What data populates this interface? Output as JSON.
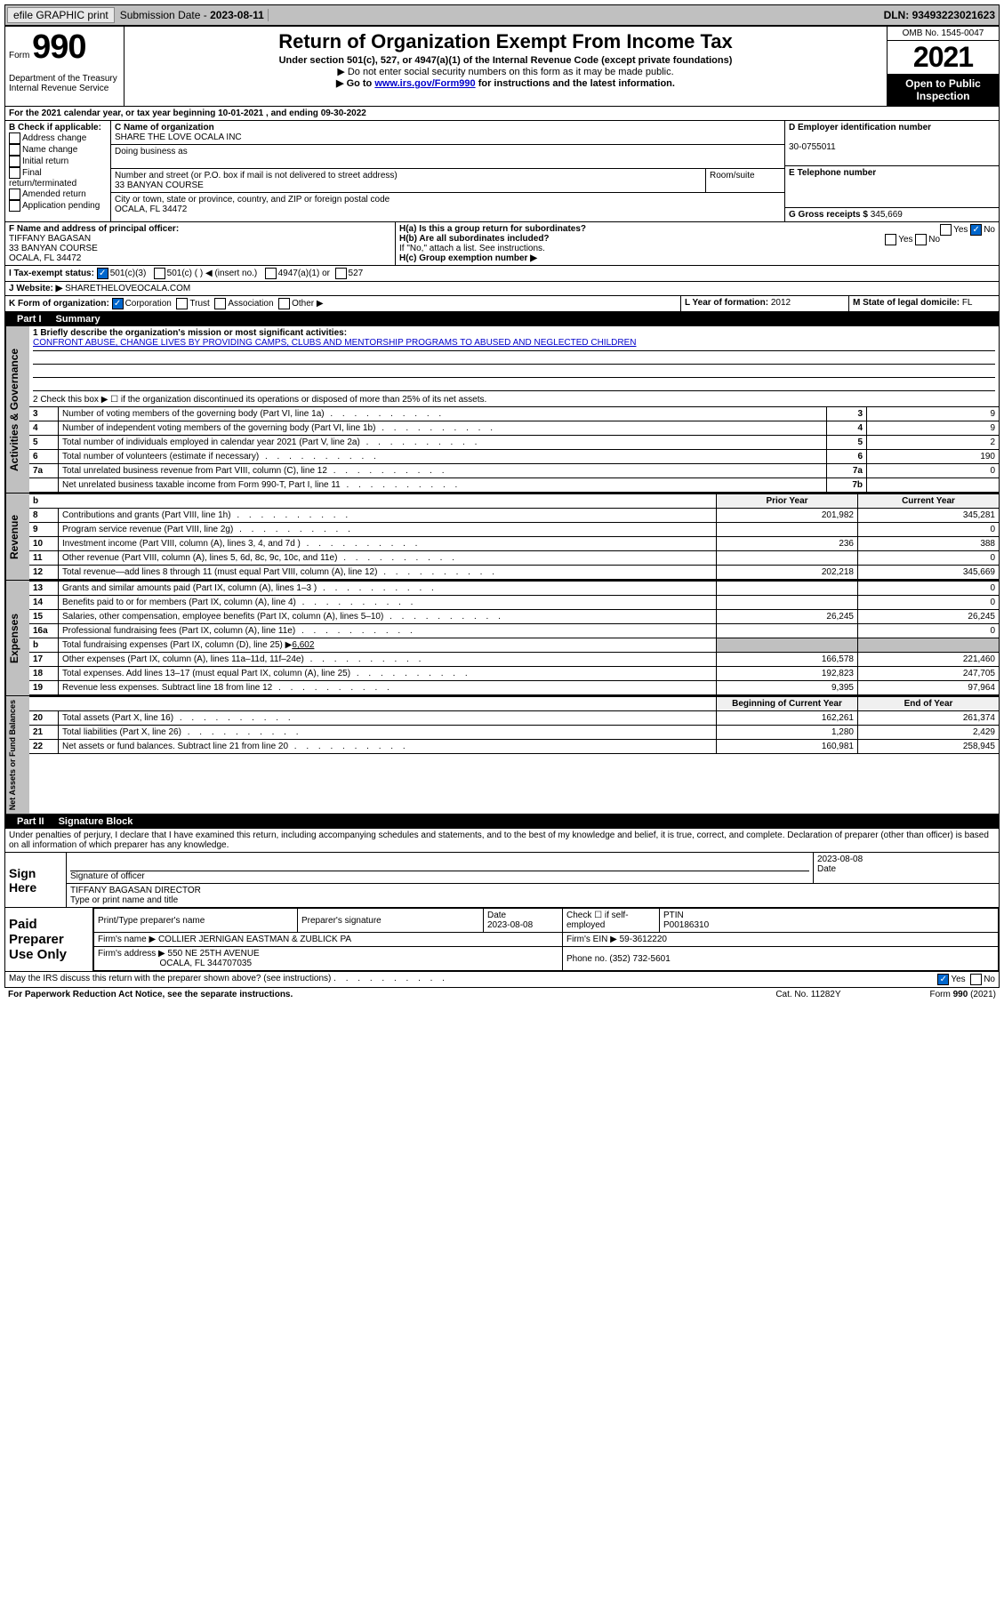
{
  "topbar": {
    "efile": "efile GRAPHIC print",
    "submission_label": "Submission Date - ",
    "submission_date": "2023-08-11",
    "dln_label": "DLN: ",
    "dln": "93493223021623"
  },
  "header": {
    "form_label": "Form",
    "form_number": "990",
    "title": "Return of Organization Exempt From Income Tax",
    "subtitle": "Under section 501(c), 527, or 4947(a)(1) of the Internal Revenue Code (except private foundations)",
    "instr1": "▶ Do not enter social security numbers on this form as it may be made public.",
    "instr2_prefix": "▶ Go to ",
    "instr2_link": "www.irs.gov/Form990",
    "instr2_suffix": " for instructions and the latest information.",
    "dept": "Department of the Treasury",
    "irs": "Internal Revenue Service",
    "omb": "OMB No. 1545-0047",
    "year": "2021",
    "public1": "Open to Public",
    "public2": "Inspection"
  },
  "line_a": "For the 2021 calendar year, or tax year beginning 10-01-2021   , and ending 09-30-2022",
  "section_b": {
    "label": "B Check if applicable:",
    "opts": [
      "Address change",
      "Name change",
      "Initial return",
      "Final return/terminated",
      "Amended return",
      "Application pending"
    ]
  },
  "section_c": {
    "name_label": "C Name of organization",
    "name": "SHARE THE LOVE OCALA INC",
    "dba_label": "Doing business as",
    "dba": "",
    "street_label": "Number and street (or P.O. box if mail is not delivered to street address)",
    "room_label": "Room/suite",
    "street": "33 BANYAN COURSE",
    "city_label": "City or town, state or province, country, and ZIP or foreign postal code",
    "city": "OCALA, FL  34472"
  },
  "section_d": {
    "label": "D Employer identification number",
    "value": "30-0755011"
  },
  "section_e": {
    "label": "E Telephone number",
    "value": ""
  },
  "section_f": {
    "label": "F Name and address of principal officer:",
    "name": "TIFFANY BAGASAN",
    "addr1": "33 BANYAN COURSE",
    "addr2": "OCALA, FL  34472"
  },
  "section_g": {
    "label": "G Gross receipts $",
    "value": "345,669"
  },
  "section_h": {
    "a_label": "H(a)  Is this a group return for subordinates?",
    "b_label": "H(b)  Are all subordinates included?",
    "b_note": "If \"No,\" attach a list. See instructions.",
    "c_label": "H(c)  Group exemption number ▶",
    "yes": "Yes",
    "no": "No"
  },
  "section_i": {
    "label": "I   Tax-exempt status:",
    "c3": "501(c)(3)",
    "c": "501(c) (  ) ◀ (insert no.)",
    "a1": "4947(a)(1) or",
    "s527": "527"
  },
  "section_j": {
    "label": "J   Website: ▶",
    "value": "SHARETHELOVEOCALA.COM"
  },
  "section_k": {
    "label": "K Form of organization:",
    "corp": "Corporation",
    "trust": "Trust",
    "assoc": "Association",
    "other": "Other ▶"
  },
  "section_l": {
    "label": "L Year of formation: ",
    "value": "2012"
  },
  "section_m": {
    "label": "M State of legal domicile: ",
    "value": "FL"
  },
  "part1": {
    "label": "Part I",
    "title": "Summary",
    "q1_label": "1  Briefly describe the organization's mission or most significant activities:",
    "q1_value": "CONFRONT ABUSE, CHANGE LIVES BY PROVIDING CAMPS, CLUBS AND MENTORSHIP PROGRAMS TO ABUSED AND NEGLECTED CHILDREN",
    "q2": "2   Check this box ▶ ☐  if the organization discontinued its operations or disposed of more than 25% of its net assets.",
    "governance_label": "Activities & Governance",
    "revenue_label": "Revenue",
    "expenses_label": "Expenses",
    "netassets_label": "Net Assets or Fund Balances",
    "prior_year": "Prior Year",
    "current_year": "Current Year",
    "begin_year": "Beginning of Current Year",
    "end_year": "End of Year",
    "rows_single": [
      {
        "n": "3",
        "text": "Number of voting members of the governing body (Part VI, line 1a)",
        "col": "3",
        "val": "9"
      },
      {
        "n": "4",
        "text": "Number of independent voting members of the governing body (Part VI, line 1b)",
        "col": "4",
        "val": "9"
      },
      {
        "n": "5",
        "text": "Total number of individuals employed in calendar year 2021 (Part V, line 2a)",
        "col": "5",
        "val": "2"
      },
      {
        "n": "6",
        "text": "Total number of volunteers (estimate if necessary)",
        "col": "6",
        "val": "190"
      },
      {
        "n": "7a",
        "text": "Total unrelated business revenue from Part VIII, column (C), line 12",
        "col": "7a",
        "val": "0"
      },
      {
        "n": "",
        "text": "Net unrelated business taxable income from Form 990-T, Part I, line 11",
        "col": "7b",
        "val": ""
      }
    ],
    "rows_revenue": [
      {
        "n": "8",
        "text": "Contributions and grants (Part VIII, line 1h)",
        "py": "201,982",
        "cy": "345,281"
      },
      {
        "n": "9",
        "text": "Program service revenue (Part VIII, line 2g)",
        "py": "",
        "cy": "0"
      },
      {
        "n": "10",
        "text": "Investment income (Part VIII, column (A), lines 3, 4, and 7d )",
        "py": "236",
        "cy": "388"
      },
      {
        "n": "11",
        "text": "Other revenue (Part VIII, column (A), lines 5, 6d, 8c, 9c, 10c, and 11e)",
        "py": "",
        "cy": "0"
      },
      {
        "n": "12",
        "text": "Total revenue—add lines 8 through 11 (must equal Part VIII, column (A), line 12)",
        "py": "202,218",
        "cy": "345,669"
      }
    ],
    "rows_expenses": [
      {
        "n": "13",
        "text": "Grants and similar amounts paid (Part IX, column (A), lines 1–3 )",
        "py": "",
        "cy": "0"
      },
      {
        "n": "14",
        "text": "Benefits paid to or for members (Part IX, column (A), line 4)",
        "py": "",
        "cy": "0"
      },
      {
        "n": "15",
        "text": "Salaries, other compensation, employee benefits (Part IX, column (A), lines 5–10)",
        "py": "26,245",
        "cy": "26,245"
      },
      {
        "n": "16a",
        "text": "Professional fundraising fees (Part IX, column (A), line 11e)",
        "py": "",
        "cy": "0"
      }
    ],
    "row_16b": {
      "n": "b",
      "text": "Total fundraising expenses (Part IX, column (D), line 25) ▶",
      "val": "6,602"
    },
    "rows_expenses2": [
      {
        "n": "17",
        "text": "Other expenses (Part IX, column (A), lines 11a–11d, 11f–24e)",
        "py": "166,578",
        "cy": "221,460"
      },
      {
        "n": "18",
        "text": "Total expenses. Add lines 13–17 (must equal Part IX, column (A), line 25)",
        "py": "192,823",
        "cy": "247,705"
      },
      {
        "n": "19",
        "text": "Revenue less expenses. Subtract line 18 from line 12",
        "py": "9,395",
        "cy": "97,964"
      }
    ],
    "rows_netassets": [
      {
        "n": "20",
        "text": "Total assets (Part X, line 16)",
        "py": "162,261",
        "cy": "261,374"
      },
      {
        "n": "21",
        "text": "Total liabilities (Part X, line 26)",
        "py": "1,280",
        "cy": "2,429"
      },
      {
        "n": "22",
        "text": "Net assets or fund balances. Subtract line 21 from line 20",
        "py": "160,981",
        "cy": "258,945"
      }
    ]
  },
  "part2": {
    "label": "Part II",
    "title": "Signature Block",
    "declaration": "Under penalties of perjury, I declare that I have examined this return, including accompanying schedules and statements, and to the best of my knowledge and belief, it is true, correct, and complete. Declaration of preparer (other than officer) is based on all information of which preparer has any knowledge.",
    "sign_here": "Sign Here",
    "sig_officer": "Signature of officer",
    "date_label": "Date",
    "sig_date": "2023-08-08",
    "officer_name": "TIFFANY BAGASAN  DIRECTOR",
    "type_name": "Type or print name and title",
    "paid_label": "Paid Preparer Use Only",
    "prep_name_label": "Print/Type preparer's name",
    "prep_sig_label": "Preparer's signature",
    "prep_date": "2023-08-08",
    "check_self": "Check ☐ if self-employed",
    "ptin_label": "PTIN",
    "ptin": "P00186310",
    "firm_name_label": "Firm's name    ▶",
    "firm_name": "COLLIER JERNIGAN EASTMAN & ZUBLICK PA",
    "firm_ein_label": "Firm's EIN ▶",
    "firm_ein": "59-3612220",
    "firm_addr_label": "Firm's address ▶",
    "firm_addr1": "550 NE 25TH AVENUE",
    "firm_addr2": "OCALA, FL  344707035",
    "phone_label": "Phone no.",
    "phone": "(352) 732-5601",
    "may_irs": "May the IRS discuss this return with the preparer shown above? (see instructions)",
    "paperwork": "For Paperwork Reduction Act Notice, see the separate instructions.",
    "catno": "Cat. No. 11282Y",
    "formfoot": "Form 990 (2021)"
  }
}
